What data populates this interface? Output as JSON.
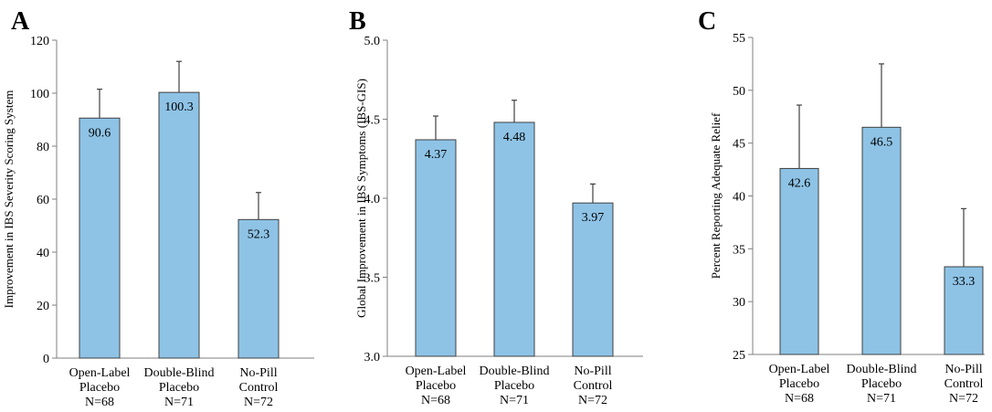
{
  "chart_data": [
    {
      "type": "bar",
      "panel_label": "A",
      "ylabel": "Improvement in IBS Severity Scoring System",
      "ylim": [
        0,
        120
      ],
      "yticks": [
        "0",
        "20",
        "40",
        "60",
        "80",
        "100",
        "120"
      ],
      "ytick_values": [
        0,
        20,
        40,
        60,
        80,
        100,
        120
      ],
      "categories": [
        [
          "Open-Label",
          "Placebo",
          "N=68"
        ],
        [
          "Double-Blind",
          "Placebo",
          "N=71"
        ],
        [
          "No-Pill",
          "Control",
          "N=72"
        ]
      ],
      "values": [
        90.6,
        100.3,
        52.3
      ],
      "value_labels": [
        "90.6",
        "100.3",
        "52.3"
      ],
      "error_upper": [
        101.5,
        112,
        62.5
      ],
      "bar_color": "#8ec3e6"
    },
    {
      "type": "bar",
      "panel_label": "B",
      "ylabel": "Global Improvement in IBS Symptoms (IBS-GIS)",
      "ylim": [
        3.0,
        5.0
      ],
      "yticks": [
        "3.0",
        "3.5",
        "4.0",
        "4.5",
        "5.0"
      ],
      "ytick_values": [
        3.0,
        3.5,
        4.0,
        4.5,
        5.0
      ],
      "categories": [
        [
          "Open-Label",
          "Placebo",
          "N=68"
        ],
        [
          "Double-Blind",
          "Placebo",
          "N=71"
        ],
        [
          "No-Pill",
          "Control",
          "N=72"
        ]
      ],
      "values": [
        4.37,
        4.48,
        3.97
      ],
      "value_labels": [
        "4.37",
        "4.48",
        "3.97"
      ],
      "error_upper": [
        4.52,
        4.62,
        4.09
      ],
      "bar_color": "#8ec3e6"
    },
    {
      "type": "bar",
      "panel_label": "C",
      "ylabel": "Percent Reporting Adequate Relief",
      "ylim": [
        25,
        55
      ],
      "yticks": [
        "25",
        "30",
        "35",
        "40",
        "45",
        "50",
        "55"
      ],
      "ytick_values": [
        25,
        30,
        35,
        40,
        45,
        50,
        55
      ],
      "categories": [
        [
          "Open-Label",
          "Placebo",
          "N=68"
        ],
        [
          "Double-Blind",
          "Placebo",
          "N=71"
        ],
        [
          "No-Pill",
          "Control",
          "N=72"
        ]
      ],
      "values": [
        42.6,
        46.5,
        33.3
      ],
      "value_labels": [
        "42.6",
        "46.5",
        "33.3"
      ],
      "error_upper": [
        48.6,
        52.5,
        38.8
      ],
      "bar_color": "#8ec3e6"
    }
  ]
}
